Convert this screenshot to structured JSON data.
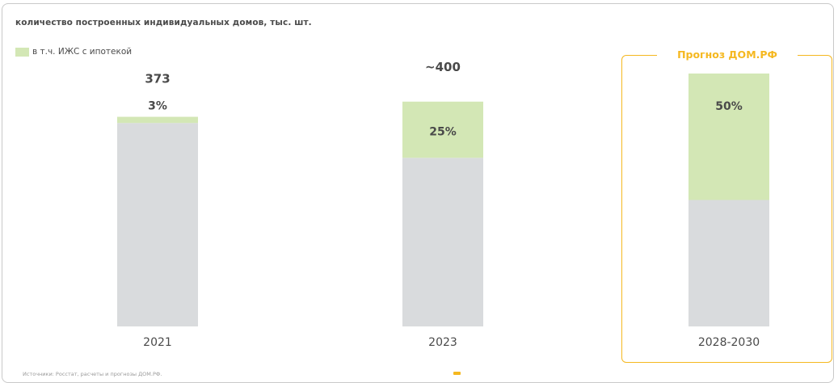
{
  "title": "количество построенных индивидуальных домов, тыс. шт.",
  "legend_label": "в т.ч. ИЖС с ипотекой",
  "forecast_label": "Прогноз ДОМ.РФ",
  "footnote": "Источники: Росстат, расчеты и прогнозы ДОМ.РФ.",
  "colors": {
    "total": "#d9dbdd",
    "mortgage": "#d3e7b5",
    "forecast": "#f5b820",
    "text": "#4a4a4a"
  },
  "chart_data": {
    "type": "bar",
    "stacked": true,
    "categories": [
      "2021",
      "2023",
      "2028-2030"
    ],
    "total_labels": [
      "373",
      "~400",
      ""
    ],
    "share_labels": [
      "3%",
      "25%",
      "50%"
    ],
    "totals": [
      373,
      400,
      450
    ],
    "shares": [
      0.03,
      0.25,
      0.5
    ],
    "series": [
      {
        "name": "в т.ч. ИЖС с ипотекой",
        "values": [
          11,
          100,
          225
        ]
      }
    ],
    "ylim": [
      0,
      450
    ],
    "grid": false,
    "legend_position": "top-left"
  }
}
